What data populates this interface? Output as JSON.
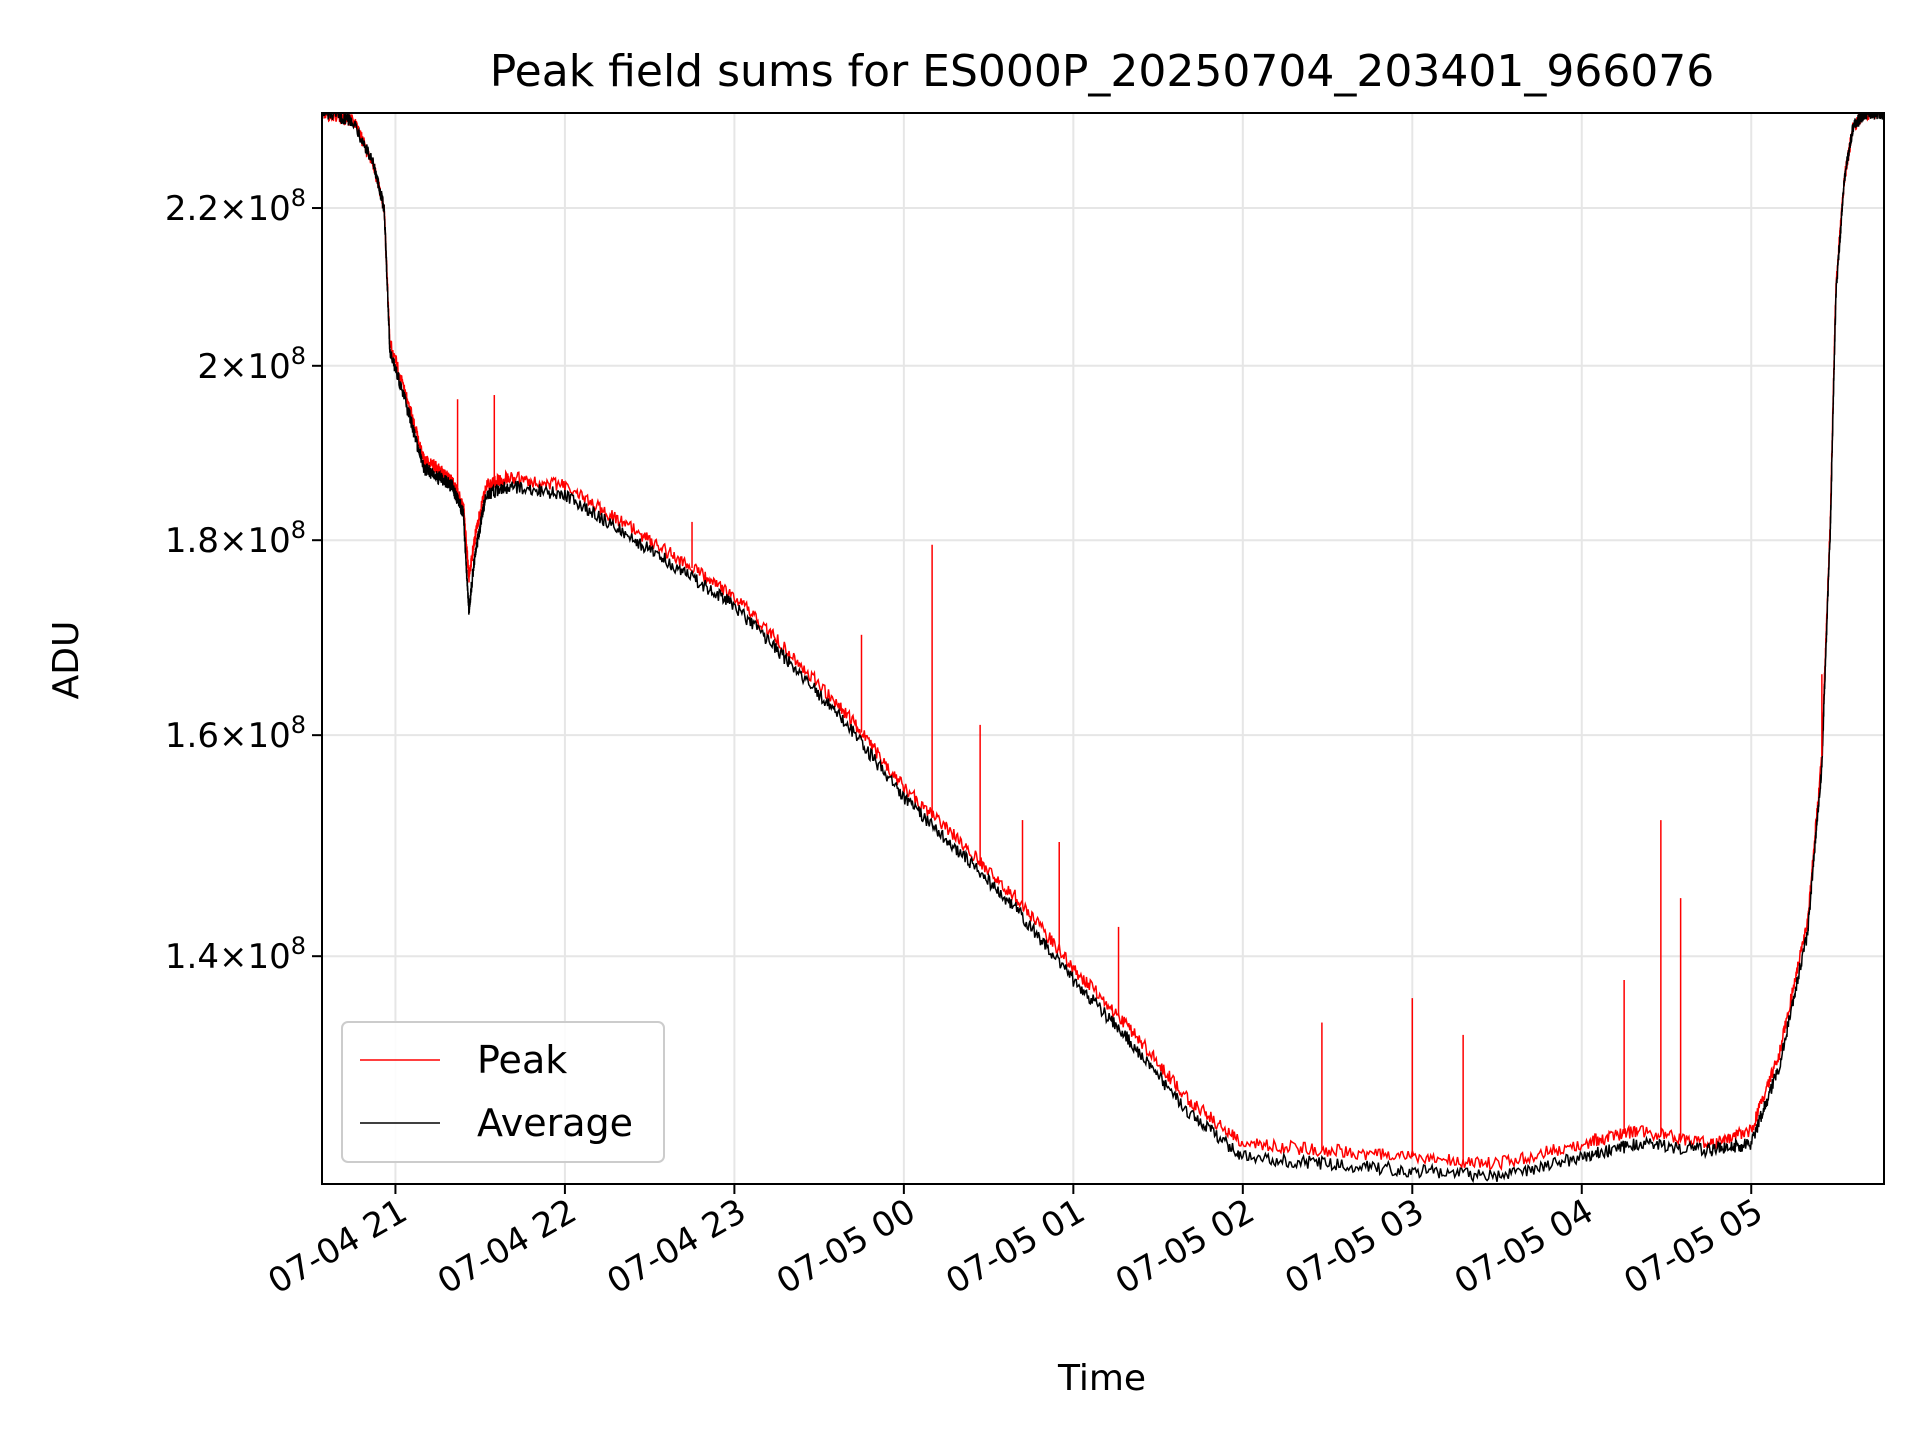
{
  "chart_data": {
    "type": "line",
    "title": "Peak field sums for ES000P_20250704_203401_966076",
    "xlabel": "Time",
    "ylabel": "ADU",
    "yscale": "log",
    "grid": true,
    "legend_position": "lower-left",
    "xlim": [
      "07-04 20:34",
      "07-05 05:47"
    ],
    "ylim": [
      122000000,
      233000000
    ],
    "x_ticks": [
      "07-04 21",
      "07-04 22",
      "07-04 23",
      "07-05 00",
      "07-05 01",
      "07-05 02",
      "07-05 03",
      "07-05 04",
      "07-05 05"
    ],
    "y_ticks": [
      {
        "value": 220000000,
        "mantissa": "2.2",
        "base": "10",
        "exp": "8"
      },
      {
        "value": 200000000,
        "mantissa": "2",
        "base": "10",
        "exp": "8"
      },
      {
        "value": 180000000,
        "mantissa": "1.8",
        "base": "10",
        "exp": "8"
      },
      {
        "value": 160000000,
        "mantissa": "1.6",
        "base": "10",
        "exp": "8"
      },
      {
        "value": 140000000,
        "mantissa": "1.4",
        "base": "10",
        "exp": "8"
      }
    ],
    "x": [
      "07-04 20:34",
      "07-04 20:45",
      "07-04 20:52",
      "07-04 20:56",
      "07-04 20:58",
      "07-04 21:05",
      "07-04 21:10",
      "07-04 21:15",
      "07-04 21:20",
      "07-04 21:24",
      "07-04 21:26",
      "07-04 21:28",
      "07-04 21:32",
      "07-04 21:40",
      "07-04 22:00",
      "07-04 22:20",
      "07-04 22:40",
      "07-04 23:00",
      "07-04 23:20",
      "07-04 23:40",
      "07-05 00:00",
      "07-05 00:20",
      "07-05 00:40",
      "07-05 01:00",
      "07-05 01:20",
      "07-05 01:40",
      "07-05 02:00",
      "07-05 02:30",
      "07-05 03:00",
      "07-05 03:30",
      "07-05 04:00",
      "07-05 04:20",
      "07-05 04:45",
      "07-05 05:00",
      "07-05 05:10",
      "07-05 05:20",
      "07-05 05:25",
      "07-05 05:28",
      "07-05 05:30",
      "07-05 05:33",
      "07-05 05:36",
      "07-05 05:40",
      "07-05 05:47"
    ],
    "series": [
      {
        "name": "Peak",
        "color": "#ff0000",
        "values": [
          233000000,
          232000000,
          226000000,
          220000000,
          203000000,
          195000000,
          189000000,
          188000000,
          186500000,
          184000000,
          176000000,
          180000000,
          186000000,
          187000000,
          186000000,
          182000000,
          178000000,
          174000000,
          168000000,
          162000000,
          155000000,
          150000000,
          145000000,
          139000000,
          134000000,
          128500000,
          125000000,
          124500000,
          124000000,
          123500000,
          125000000,
          126000000,
          125000000,
          126000000,
          132000000,
          143000000,
          158000000,
          182000000,
          210000000,
          224000000,
          231000000,
          233000000,
          233000000
        ]
      },
      {
        "name": "Average",
        "color": "#000000",
        "values": [
          233000000,
          232000000,
          226000000,
          220000000,
          202000000,
          194000000,
          188000000,
          187000000,
          186000000,
          183000000,
          172500000,
          178000000,
          185000000,
          186000000,
          185000000,
          181000000,
          177000000,
          173000000,
          167000000,
          161000000,
          154000000,
          149000000,
          144000000,
          138000000,
          133000000,
          127500000,
          124000000,
          123500000,
          123000000,
          122500000,
          124000000,
          125000000,
          124500000,
          125000000,
          131000000,
          142000000,
          157000000,
          181000000,
          209000000,
          224000000,
          231000000,
          233000000,
          233000000
        ]
      }
    ],
    "spikes": {
      "Peak": [
        {
          "x": "07-04 21:22",
          "y": 196000000
        },
        {
          "x": "07-04 21:35",
          "y": 196500000
        },
        {
          "x": "07-04 22:45",
          "y": 182000000
        },
        {
          "x": "07-04 23:45",
          "y": 170000000
        },
        {
          "x": "07-05 00:10",
          "y": 179500000
        },
        {
          "x": "07-05 00:27",
          "y": 161000000
        },
        {
          "x": "07-05 00:42",
          "y": 152000000
        },
        {
          "x": "07-05 00:55",
          "y": 150000000
        },
        {
          "x": "07-05 01:16",
          "y": 142500000
        },
        {
          "x": "07-05 02:28",
          "y": 134500000
        },
        {
          "x": "07-05 03:00",
          "y": 136500000
        },
        {
          "x": "07-05 03:18",
          "y": 133500000
        },
        {
          "x": "07-05 04:15",
          "y": 138000000
        },
        {
          "x": "07-05 04:28",
          "y": 152000000
        },
        {
          "x": "07-05 04:35",
          "y": 145000000
        },
        {
          "x": "07-05 05:25",
          "y": 166000000
        }
      ]
    }
  }
}
